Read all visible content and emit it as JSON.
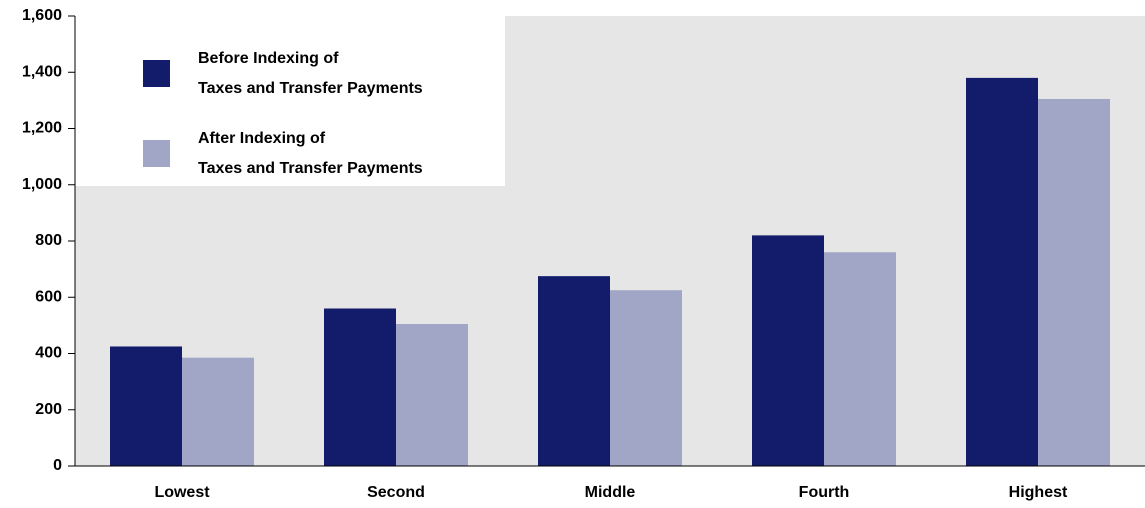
{
  "chart_data": {
    "type": "bar",
    "categories": [
      "Lowest",
      "Second",
      "Middle",
      "Fourth",
      "Highest"
    ],
    "series": [
      {
        "name": "Before Indexing of\nTaxes and Transfer Payments",
        "color": "#131b6b",
        "values": [
          425,
          560,
          675,
          820,
          1380
        ]
      },
      {
        "name": "After Indexing of\nTaxes and Transfer Payments",
        "color": "#a1a5c6",
        "values": [
          385,
          505,
          625,
          760,
          1305
        ]
      }
    ],
    "ylim": [
      0,
      1600
    ],
    "yticks": [
      0,
      200,
      400,
      600,
      800,
      {
        "value": 1000,
        "label": "1,000"
      },
      {
        "value": 1200,
        "label": "1,200"
      },
      {
        "value": 1400,
        "label": "1,400"
      },
      {
        "value": 1600,
        "label": "1,600"
      }
    ],
    "legend": "upper left"
  }
}
